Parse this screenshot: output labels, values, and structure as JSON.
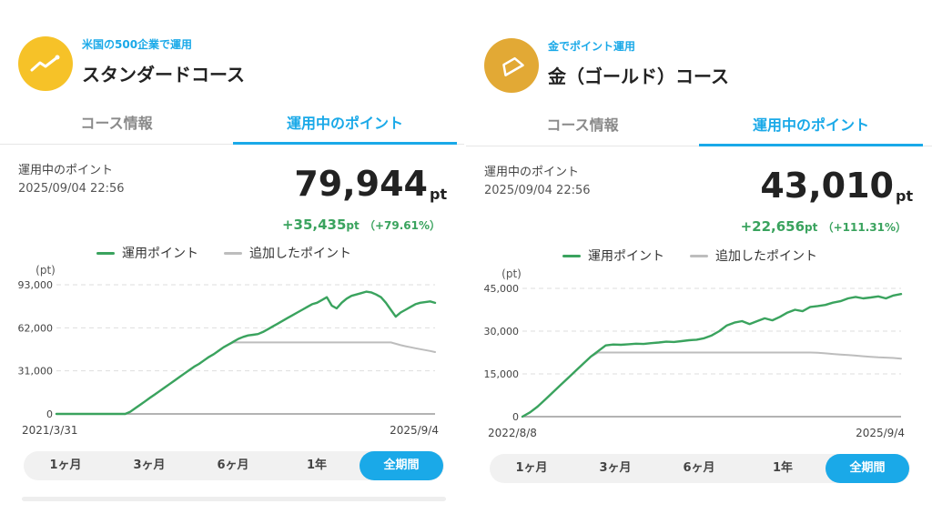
{
  "left": {
    "course": {
      "subtitle": "米国の500企業で運用",
      "title": "スタンダードコース",
      "icon": "trend-up-icon",
      "icon_color": "#f6c228"
    },
    "tabs": [
      {
        "label": "コース情報",
        "active": false
      },
      {
        "label": "運用中のポイント",
        "active": true
      }
    ],
    "summary": {
      "label": "運用中のポイント",
      "datetime": "2025/09/04 22:56",
      "value": "79,944",
      "unit": "pt",
      "gain": "+35,435",
      "gain_unit": "pt",
      "gain_pct": "（+79.61%）"
    },
    "legend": [
      {
        "name": "運用ポイント",
        "color": "#3aa35e"
      },
      {
        "name": "追加したポイント",
        "color": "#bdbdbd"
      }
    ],
    "chart_data": {
      "type": "line",
      "ylabel": "(pt)",
      "ylim": [
        0,
        93000
      ],
      "yticks": [
        "93,000",
        "62,000",
        "31,000",
        "0"
      ],
      "ytick_values": [
        93000,
        62000,
        31000,
        0
      ],
      "xlabels": [
        "2021/3/31",
        "2025/9/4"
      ],
      "grid": true,
      "series": [
        {
          "name": "運用ポイント",
          "color": "#3aa35e",
          "values": [
            0,
            0,
            0,
            0,
            0,
            0,
            0,
            0,
            0,
            0,
            0,
            0,
            0,
            0,
            0,
            1500,
            4000,
            6500,
            9000,
            11500,
            14000,
            16500,
            19000,
            21500,
            24000,
            26500,
            29000,
            31500,
            34000,
            36000,
            38500,
            41000,
            43000,
            45500,
            48000,
            50000,
            52000,
            54000,
            55500,
            56500,
            57000,
            57500,
            59000,
            61000,
            63000,
            65000,
            67000,
            69000,
            71000,
            73000,
            75000,
            77000,
            79000,
            80000,
            82000,
            84000,
            78000,
            76000,
            80000,
            83000,
            85000,
            86000,
            87000,
            88000,
            87500,
            86000,
            84000,
            80000,
            75000,
            70000,
            73000,
            75000,
            77000,
            79000,
            80000,
            80500,
            81000,
            79944
          ]
        },
        {
          "name": "追加したポイント",
          "color": "#bdbdbd",
          "values": [
            0,
            0,
            0,
            0,
            0,
            0,
            0,
            0,
            0,
            0,
            0,
            0,
            0,
            0,
            0,
            1500,
            4000,
            6500,
            9000,
            11500,
            14000,
            16500,
            19000,
            21500,
            24000,
            26500,
            29000,
            31500,
            34000,
            36000,
            38500,
            41000,
            43000,
            45500,
            48000,
            50000,
            51500,
            51500,
            51500,
            51500,
            51500,
            51500,
            51500,
            51500,
            51500,
            51500,
            51500,
            51500,
            51500,
            51500,
            51500,
            51500,
            51500,
            51500,
            51500,
            51500,
            51500,
            51500,
            51500,
            51500,
            51500,
            51500,
            51500,
            51500,
            51500,
            51500,
            51500,
            51500,
            51500,
            50500,
            49500,
            48700,
            48000,
            47300,
            46600,
            46000,
            45300,
            44509
          ]
        }
      ]
    },
    "range_buttons": [
      {
        "label": "1ヶ月",
        "active": false
      },
      {
        "label": "3ヶ月",
        "active": false
      },
      {
        "label": "6ヶ月",
        "active": false
      },
      {
        "label": "1年",
        "active": false
      },
      {
        "label": "全期間",
        "active": true
      }
    ]
  },
  "right": {
    "course": {
      "subtitle": "金でポイント運用",
      "title": "金（ゴールド）コース",
      "icon": "gold-bar-icon",
      "icon_color": "#e2a935"
    },
    "tabs": [
      {
        "label": "コース情報",
        "active": false
      },
      {
        "label": "運用中のポイント",
        "active": true
      }
    ],
    "summary": {
      "label": "運用中のポイント",
      "datetime": "2025/09/04 22:56",
      "value": "43,010",
      "unit": "pt",
      "gain": "+22,656",
      "gain_unit": "pt",
      "gain_pct": "（+111.31%）"
    },
    "legend": [
      {
        "name": "運用ポイント",
        "color": "#3aa35e"
      },
      {
        "name": "追加したポイント",
        "color": "#bdbdbd"
      }
    ],
    "chart_data": {
      "type": "line",
      "ylabel": "(pt)",
      "ylim": [
        0,
        45000
      ],
      "yticks": [
        "45,000",
        "30,000",
        "15,000",
        "0"
      ],
      "ytick_values": [
        45000,
        30000,
        15000,
        0
      ],
      "xlabels": [
        "2022/8/8",
        "2025/9/4"
      ],
      "grid": true,
      "series": [
        {
          "name": "運用ポイント",
          "color": "#3aa35e",
          "values": [
            0,
            1500,
            3500,
            6000,
            8500,
            11000,
            13500,
            16000,
            18500,
            21000,
            23000,
            25000,
            25300,
            25200,
            25400,
            25600,
            25500,
            25800,
            26000,
            26300,
            26200,
            26500,
            26800,
            27000,
            27500,
            28500,
            30000,
            32000,
            33000,
            33500,
            32500,
            33500,
            34500,
            33800,
            35000,
            36500,
            37500,
            37000,
            38500,
            38800,
            39200,
            40000,
            40500,
            41500,
            42000,
            41500,
            41800,
            42200,
            41500,
            42500,
            43010
          ]
        },
        {
          "name": "追加したポイント",
          "color": "#bdbdbd",
          "values": [
            0,
            1500,
            3500,
            6000,
            8500,
            11000,
            13500,
            16000,
            18500,
            21000,
            22500,
            22500,
            22500,
            22500,
            22500,
            22500,
            22500,
            22500,
            22500,
            22500,
            22500,
            22500,
            22500,
            22500,
            22500,
            22500,
            22500,
            22500,
            22500,
            22500,
            22500,
            22500,
            22500,
            22500,
            22500,
            22500,
            22500,
            22500,
            22500,
            22400,
            22200,
            22000,
            21800,
            21600,
            21400,
            21200,
            21000,
            20800,
            20700,
            20600,
            20354
          ]
        }
      ]
    },
    "range_buttons": [
      {
        "label": "1ヶ月",
        "active": false
      },
      {
        "label": "3ヶ月",
        "active": false
      },
      {
        "label": "6ヶ月",
        "active": false
      },
      {
        "label": "1年",
        "active": false
      },
      {
        "label": "全期間",
        "active": true
      }
    ]
  }
}
